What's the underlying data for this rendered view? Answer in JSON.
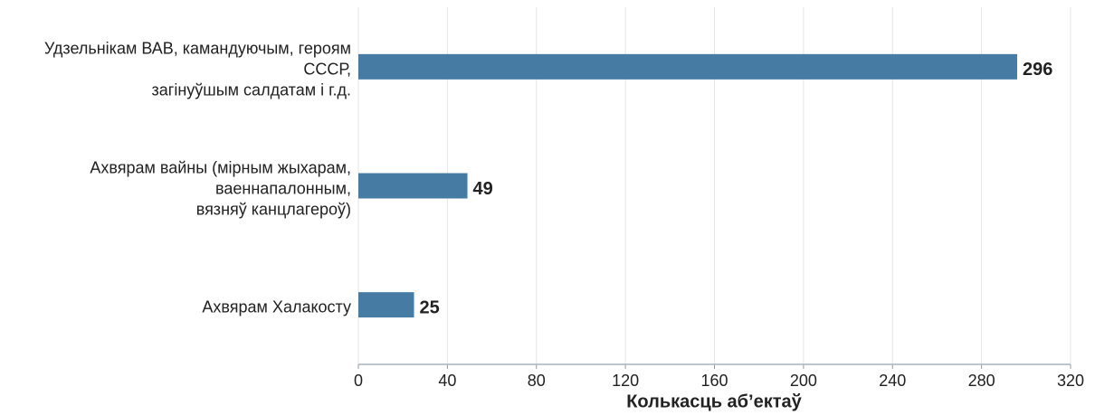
{
  "chart_data": {
    "type": "bar",
    "orientation": "horizontal",
    "categories": [
      "Удзельнікам ВАВ, камандуючым, героям\nСССР,\nзагінуўшым салдатам і г.д.",
      "Ахвярам вайны (мірным жыхарам,\nваеннапалонным,\nвязняў канцлагероў)",
      "Ахвярам Халакосту"
    ],
    "values": [
      296,
      49,
      25
    ],
    "color": "#467ba4",
    "xlabel": "Колькасць аб’ектаў",
    "xlim": [
      0,
      320
    ],
    "xticks": [
      0,
      40,
      80,
      120,
      160,
      200,
      240,
      280,
      320
    ],
    "grid": true
  }
}
